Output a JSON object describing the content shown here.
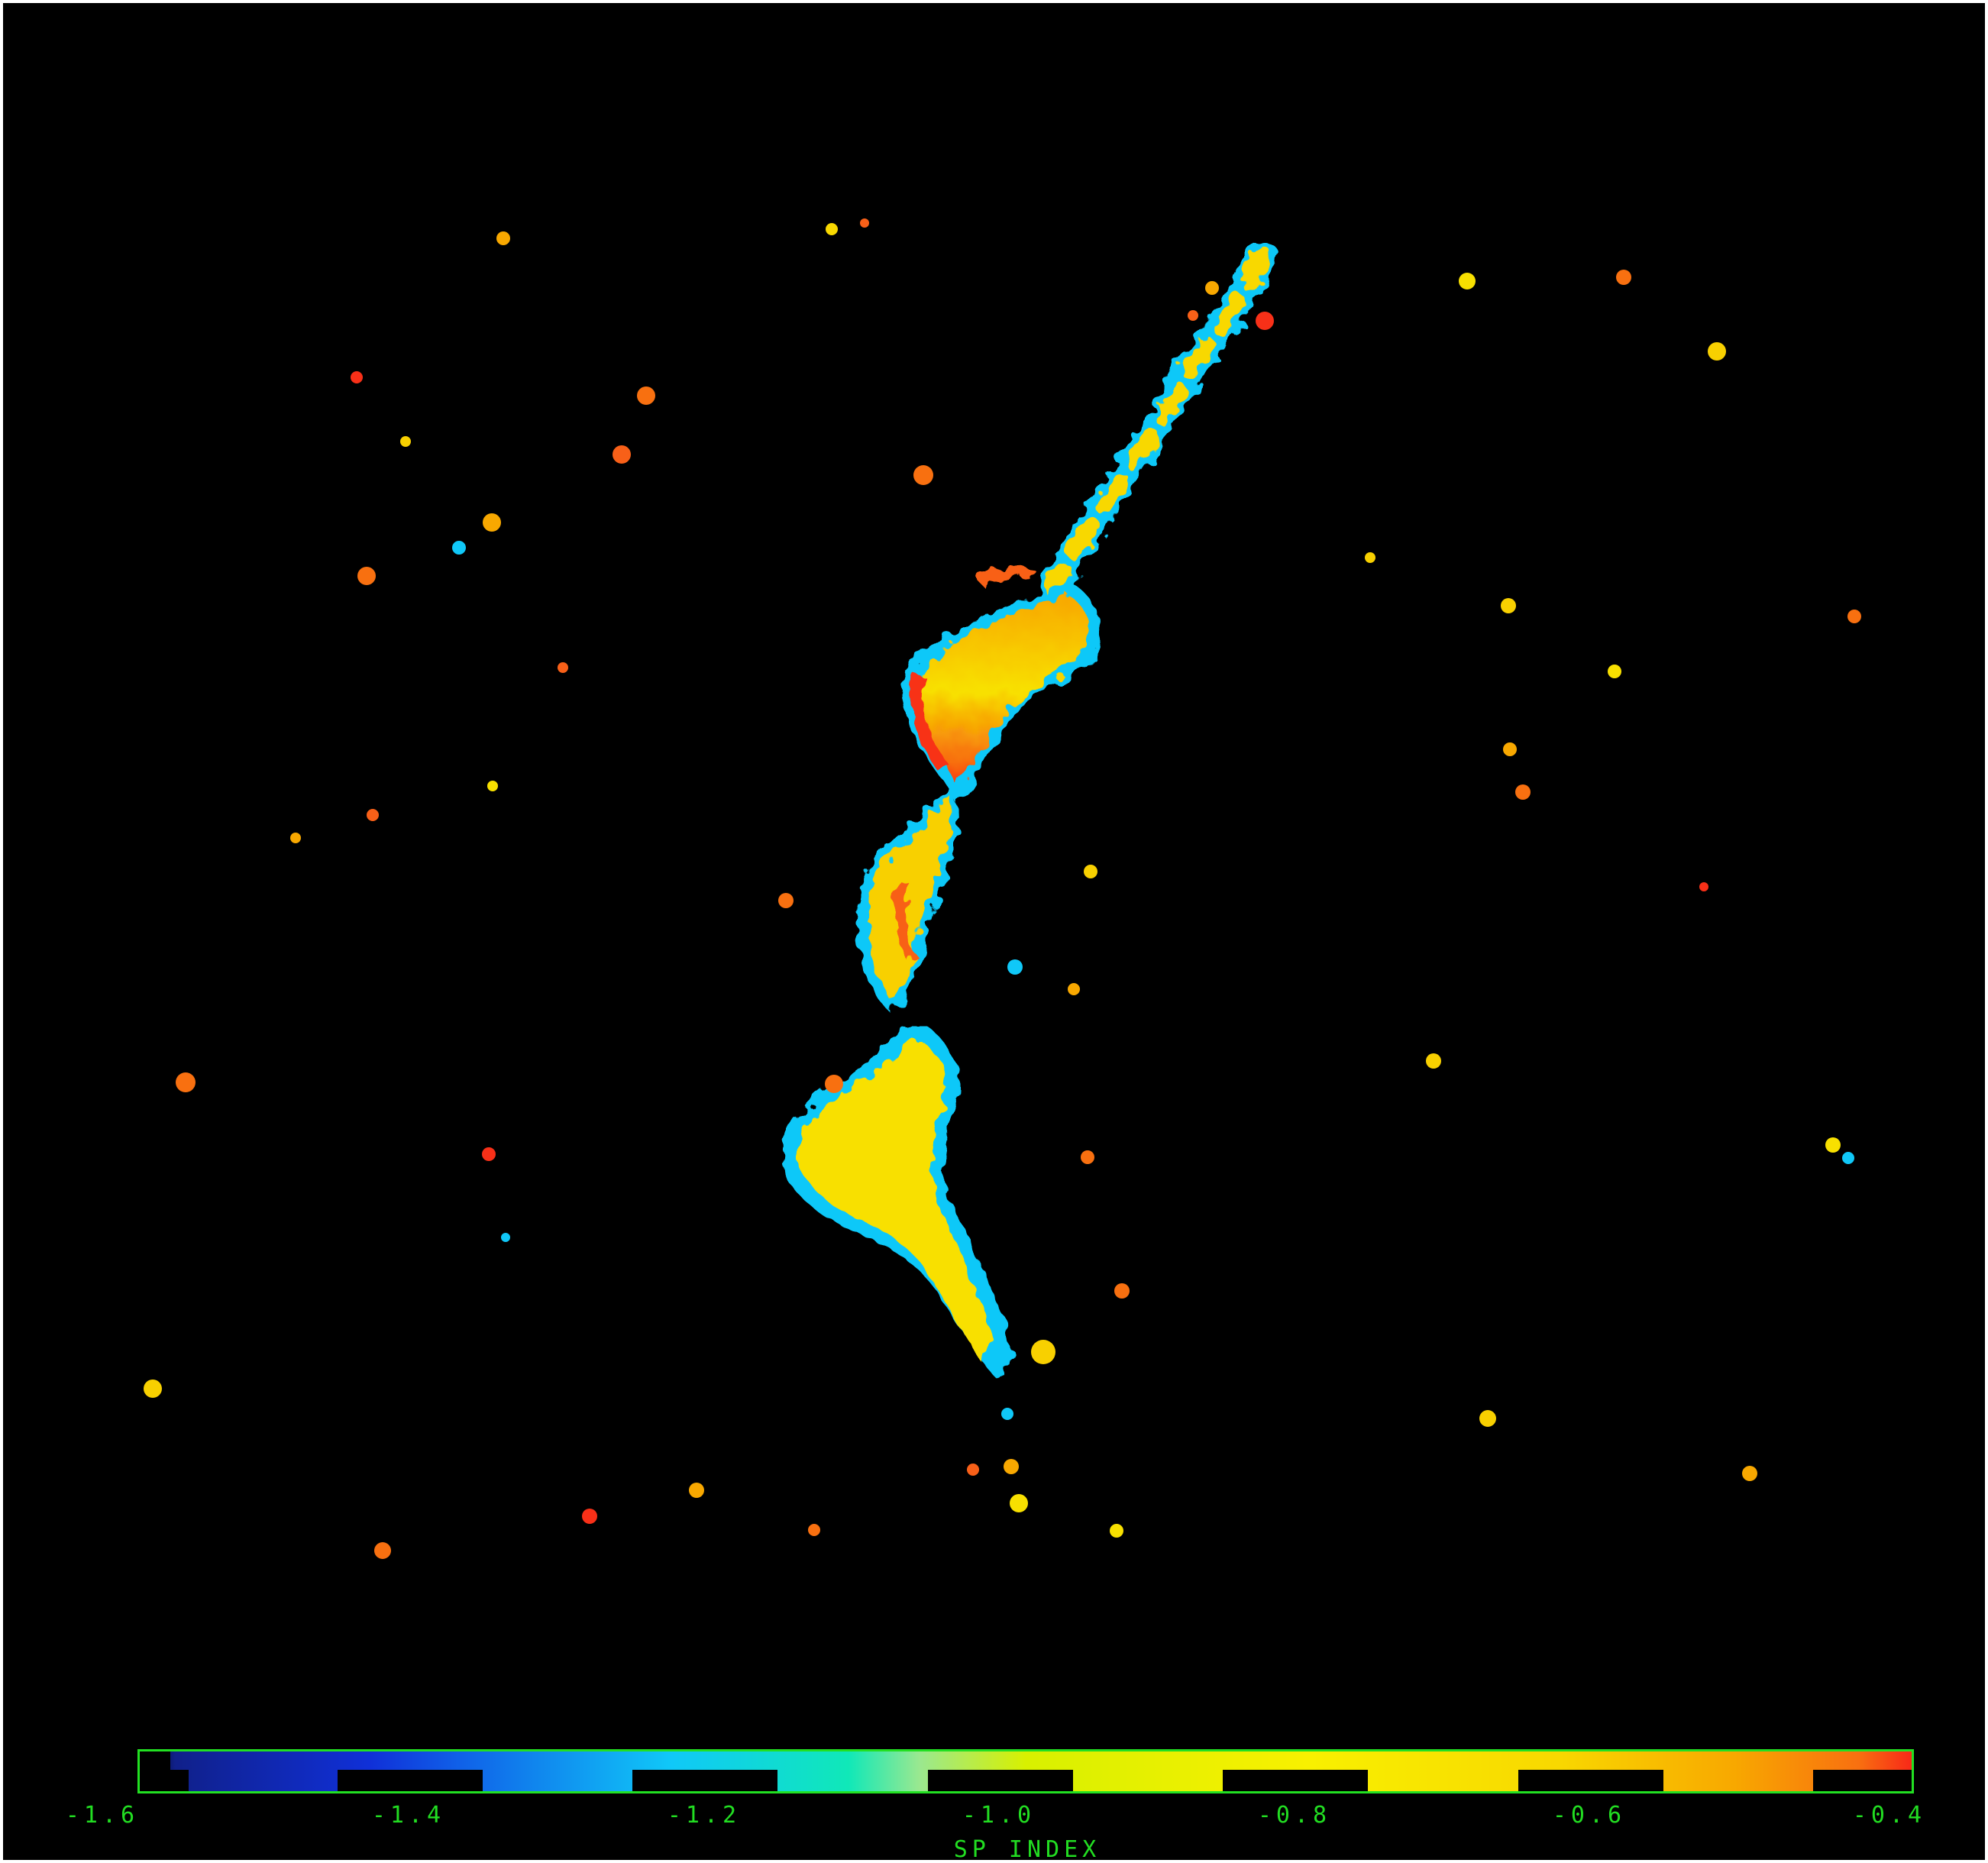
{
  "image": {
    "description_free": true,
    "background_color": "#000000",
    "frame_color": "#ffffff",
    "accent_color": "#22dd22"
  },
  "colorbar": {
    "axis_label": "SP INDEX",
    "range": [
      -1.6,
      -0.4
    ],
    "ticks": [
      "-1.6",
      "-1.4",
      "-1.2",
      "-1.0",
      "-0.8",
      "-0.6",
      "-0.4"
    ],
    "colormap": [
      "#000000",
      "#10208a",
      "#1030d8",
      "#1878e8",
      "#10c8f8",
      "#10e8b8",
      "#9ae890",
      "#d8f000",
      "#f8f000",
      "#f8d800",
      "#f8a800",
      "#f87010",
      "#f82818"
    ]
  }
}
